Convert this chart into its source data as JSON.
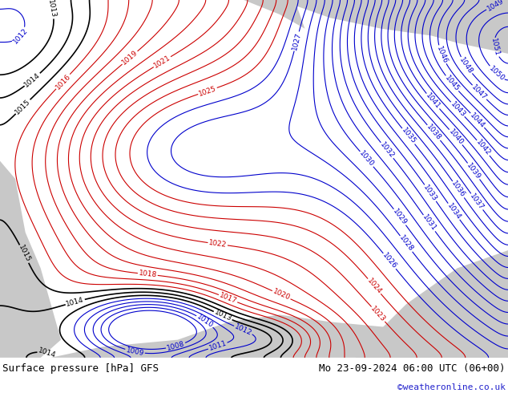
{
  "title_left": "Surface pressure [hPa] GFS",
  "title_right": "Mo 23-09-2024 06:00 UTC (06+00)",
  "credit": "©weatheronline.co.uk",
  "land_color": "#c8e8a0",
  "sea_color": "#c8c8c8",
  "label_fontsize": 6.5,
  "title_fontsize": 9,
  "credit_fontsize": 8,
  "figsize": [
    6.34,
    4.9
  ],
  "dpi": 100
}
